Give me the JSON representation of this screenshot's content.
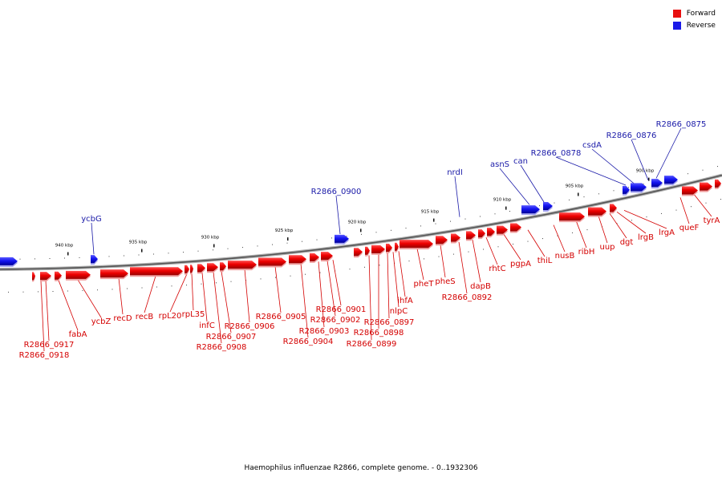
{
  "legend": {
    "forward_label": "Forward",
    "reverse_label": "Reverse",
    "forward_color": "#e81010",
    "reverse_color": "#1a1ae8"
  },
  "caption": "Haemophilus influenzae R2866, complete genome. - 0..1932306",
  "ticks": [
    "940 kbp",
    "935 kbp",
    "930 kbp",
    "925 kbp",
    "920 kbp",
    "915 kbp",
    "910 kbp",
    "905 kbp",
    "900 kbp"
  ],
  "forward_genes": [
    "tyrA",
    "queF",
    "lrgA",
    "lrgB",
    "dgt",
    "uup",
    "ribH",
    "nusB",
    "thiL",
    "pgpA",
    "rhtC",
    "dapB",
    "R2866_0892",
    "pheS",
    "pheT",
    "ihfA",
    "nlpC",
    "R2866_0897",
    "R2866_0898",
    "R2866_0899",
    "R2866_0901",
    "R2866_0902",
    "R2866_0903",
    "R2866_0904",
    "R2866_0905",
    "R2866_0906",
    "R2866_0907",
    "R2866_0908",
    "infC",
    "rpL35",
    "rpL20",
    "recB",
    "recD",
    "ycbZ",
    "fabA",
    "R2866_0917",
    "R2866_0918"
  ],
  "reverse_genes": [
    "R2866_0875",
    "R2866_0876",
    "csdA",
    "R2866_0878",
    "can",
    "asnS",
    "nrdI",
    "R2866_0900",
    "ycbG"
  ]
}
